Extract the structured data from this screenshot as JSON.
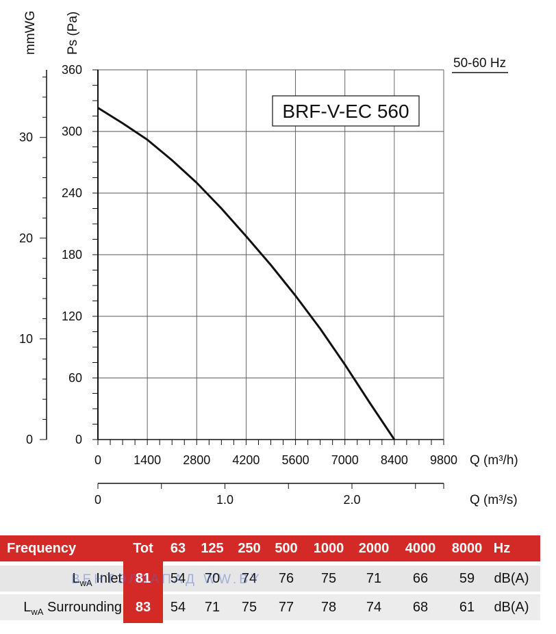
{
  "chart_data": {
    "type": "line",
    "title": "BRF-V-EC 560",
    "frequency_label": "50-60 Hz",
    "ylabel": "Ps (Pa)",
    "ylabel_secondary": "mmWG",
    "xlabel": "Q (m³/h)",
    "xlabel_secondary": "Q (m³/s)",
    "xlim": [
      0,
      9800
    ],
    "ylim": [
      0,
      360
    ],
    "xticks": [
      "0",
      "1400",
      "2800",
      "4200",
      "5600",
      "7000",
      "8400",
      "9800"
    ],
    "yticks": [
      "0",
      "60",
      "120",
      "180",
      "240",
      "300",
      "360"
    ],
    "y2_ticks": [
      "0",
      "10",
      "20",
      "30"
    ],
    "x2_ticks": [
      "0",
      "1.0",
      "2.0"
    ],
    "grid": true,
    "series": [
      {
        "x": [
          0,
          700,
          1400,
          2100,
          2800,
          3500,
          4200,
          4900,
          5600,
          6300,
          7000,
          7700,
          8400
        ],
        "y": [
          323,
          308,
          292,
          272,
          250,
          225,
          198,
          170,
          140,
          108,
          73,
          36,
          0
        ]
      }
    ]
  },
  "sound_table": {
    "header": {
      "label": "Frequency",
      "tot": "Tot",
      "bands": [
        "63",
        "125",
        "250",
        "500",
        "1000",
        "2000",
        "4000",
        "8000"
      ],
      "unit": "Hz"
    },
    "inlet": {
      "label_main": "L",
      "label_sub": "wA",
      "label_rest": " Inlet",
      "tot": "81",
      "values": [
        "54",
        "70",
        "74",
        "76",
        "75",
        "71",
        "66",
        "59"
      ],
      "unit": "dB(A)"
    },
    "surrounding": {
      "label_main": "L",
      "label_sub": "wA",
      "label_rest": " Surrounding",
      "tot": "83",
      "values": [
        "54",
        "71",
        "75",
        "77",
        "78",
        "74",
        "68",
        "61"
      ],
      "unit": "dB(A)"
    }
  },
  "watermark": "ВЕНТЭЛЗАПАД     WW.BY"
}
